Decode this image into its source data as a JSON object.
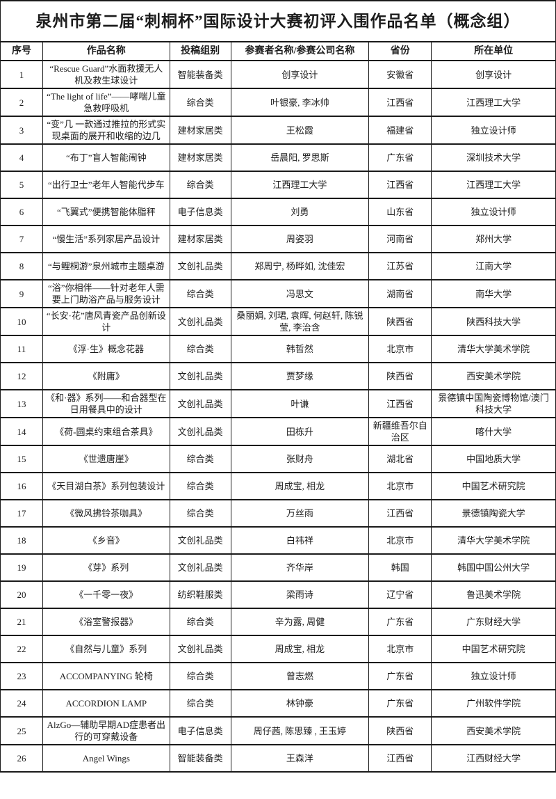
{
  "doc": {
    "title": "泉州市第二届“刺桐杯”国际设计大赛初评入围作品名单（概念组）"
  },
  "colors": {
    "border": "#1a1a1a",
    "text": "#1c1c1c",
    "background": "#ffffff"
  },
  "table": {
    "headers": [
      "序号",
      "作品名称",
      "投稿组别",
      "参赛者名称/参赛公司名称",
      "省份",
      "所在单位"
    ],
    "rows": [
      {
        "no": "1",
        "work": "“Rescue Guard”水面救援无人机及救生球设计",
        "category": "智能装备类",
        "participants": "创享设计",
        "province": "安徽省",
        "unit": "创享设计"
      },
      {
        "no": "2",
        "work": "“The light of life”——哮喘儿童急救呼吸机",
        "category": "综合类",
        "participants": "叶银豪, 李冰帅",
        "province": "江西省",
        "unit": "江西理工大学"
      },
      {
        "no": "3",
        "work": "“变”几 一款通过推拉的形式实现桌面的展开和收缩的边几",
        "category": "建材家居类",
        "participants": "王松霞",
        "province": "福建省",
        "unit": "独立设计师"
      },
      {
        "no": "4",
        "work": "“布丁”盲人智能闹钟",
        "category": "建材家居类",
        "participants": "岳晨阳, 罗思斯",
        "province": "广东省",
        "unit": "深圳技术大学"
      },
      {
        "no": "5",
        "work": "“出行卫士”老年人智能代步车",
        "category": "综合类",
        "participants": "江西理工大学",
        "province": "江西省",
        "unit": "江西理工大学"
      },
      {
        "no": "6",
        "work": "“飞翼式”便携智能体脂秤",
        "category": "电子信息类",
        "participants": "刘勇",
        "province": "山东省",
        "unit": "独立设计师"
      },
      {
        "no": "7",
        "work": "“慢生活”系列家居产品设计",
        "category": "建材家居类",
        "participants": "周姿羽",
        "province": "河南省",
        "unit": "郑州大学"
      },
      {
        "no": "8",
        "work": "“与鲤桐游”泉州城市主题桌游",
        "category": "文创礼品类",
        "participants": "郑周宁, 杨晔如, 沈佳宏",
        "province": "江苏省",
        "unit": "江南大学"
      },
      {
        "no": "9",
        "work": "“浴”你相伴——针对老年人需要上门助浴产品与服务设计",
        "category": "综合类",
        "participants": "冯思文",
        "province": "湖南省",
        "unit": "南华大学"
      },
      {
        "no": "10",
        "work": "“长安·花”唐风青瓷产品创新设计",
        "category": "文创礼品类",
        "participants": "桑丽娟, 刘珺, 袁晖, 何赵轩, 陈锐莹, 李治含",
        "province": "陕西省",
        "unit": "陕西科技大学"
      },
      {
        "no": "11",
        "work": "《浮·生》概念花器",
        "category": "综合类",
        "participants": "韩哲然",
        "province": "北京市",
        "unit": "清华大学美术学院"
      },
      {
        "no": "12",
        "work": "《附庸》",
        "category": "文创礼品类",
        "participants": "贾梦缘",
        "province": "陕西省",
        "unit": "西安美术学院"
      },
      {
        "no": "13",
        "work": "《和·器》系列——和合器型在日用餐具中的设计",
        "category": "文创礼品类",
        "participants": "叶谦",
        "province": "江西省",
        "unit": "景德镇中国陶瓷博物馆/澳门科技大学"
      },
      {
        "no": "14",
        "work": "《荷-圆桌约束组合茶具》",
        "category": "文创礼品类",
        "participants": "田栋升",
        "province": "新疆维吾尔自治区",
        "unit": "喀什大学"
      },
      {
        "no": "15",
        "work": "《世遗唐崖》",
        "category": "综合类",
        "participants": "张财舟",
        "province": "湖北省",
        "unit": "中国地质大学"
      },
      {
        "no": "16",
        "work": "《天目湖白茶》系列包装设计",
        "category": "综合类",
        "participants": "周成宝, 相龙",
        "province": "北京市",
        "unit": "中国艺术研究院"
      },
      {
        "no": "17",
        "work": "《微风拂铃茶咖具》",
        "category": "综合类",
        "participants": "万丝雨",
        "province": "江西省",
        "unit": "景德镇陶瓷大学"
      },
      {
        "no": "18",
        "work": "《乡音》",
        "category": "文创礼品类",
        "participants": "白祎祥",
        "province": "北京市",
        "unit": "清华大学美术学院"
      },
      {
        "no": "19",
        "work": "《芽》系列",
        "category": "文创礼品类",
        "participants": "齐华岸",
        "province": "韩国",
        "unit": "韩国中国公州大学"
      },
      {
        "no": "20",
        "work": "《一千零一夜》",
        "category": "纺织鞋服类",
        "participants": "梁雨诗",
        "province": "辽宁省",
        "unit": "鲁迅美术学院"
      },
      {
        "no": "21",
        "work": "《浴室警报器》",
        "category": "综合类",
        "participants": "辛为露, 周健",
        "province": "广东省",
        "unit": "广东财经大学"
      },
      {
        "no": "22",
        "work": "《自然与儿童》系列",
        "category": "文创礼品类",
        "participants": "周成宝, 相龙",
        "province": "北京市",
        "unit": "中国艺术研究院"
      },
      {
        "no": "23",
        "work": "ACCOMPANYING 轮椅",
        "category": "综合类",
        "participants": "曾志燃",
        "province": "广东省",
        "unit": "独立设计师"
      },
      {
        "no": "24",
        "work": "ACCORDION LAMP",
        "category": "综合类",
        "participants": "林钟豪",
        "province": "广东省",
        "unit": "广州软件学院"
      },
      {
        "no": "25",
        "work": "AlzGo—辅助早期AD症患者出行的可穿戴设备",
        "category": "电子信息类",
        "participants": "周仔茜, 陈思臻 , 王玉婷",
        "province": "陕西省",
        "unit": "西安美术学院"
      },
      {
        "no": "26",
        "work": "Angel Wings",
        "category": "智能装备类",
        "participants": "王森洋",
        "province": "江西省",
        "unit": "江西财经大学"
      }
    ]
  }
}
